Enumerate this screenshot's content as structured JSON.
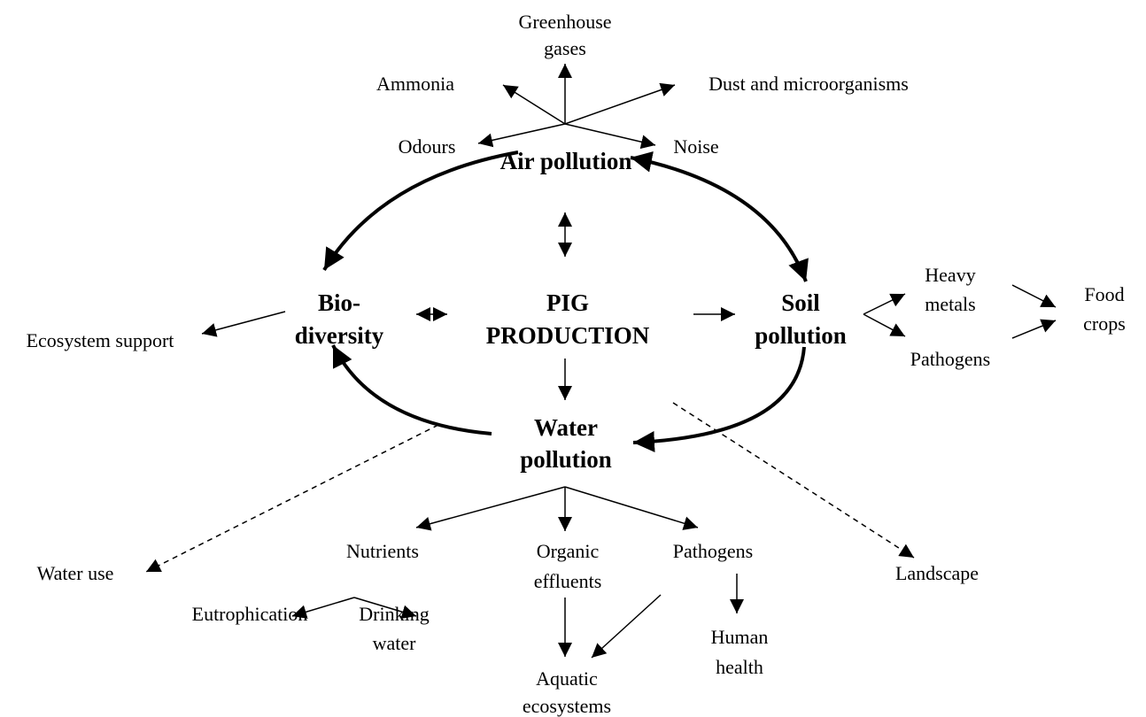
{
  "nodes": [
    {
      "lines": [
        "Greenhouse",
        "gases"
      ]
    },
    {
      "lines": [
        "Ammonia"
      ]
    },
    {
      "lines": [
        "Dust and microorganisms"
      ]
    },
    {
      "lines": [
        "Odours"
      ]
    },
    {
      "lines": [
        "Noise"
      ]
    },
    {
      "lines": [
        "Air pollution"
      ]
    },
    {
      "lines": [
        "Bio-",
        "diversity"
      ]
    },
    {
      "lines": [
        "PIG",
        "PRODUCTION"
      ]
    },
    {
      "lines": [
        "Soil",
        "pollution"
      ]
    },
    {
      "lines": [
        "Heavy",
        "metals"
      ]
    },
    {
      "lines": [
        "Pathogens"
      ]
    },
    {
      "lines": [
        "Food",
        "crops"
      ]
    },
    {
      "lines": [
        "Ecosystem support"
      ]
    },
    {
      "lines": [
        "Water",
        "pollution"
      ]
    },
    {
      "lines": [
        "Water use"
      ]
    },
    {
      "lines": [
        "Nutrients"
      ]
    },
    {
      "lines": [
        "Organic",
        "effluents"
      ]
    },
    {
      "lines": [
        "Pathogens"
      ]
    },
    {
      "lines": [
        "Landscape"
      ]
    },
    {
      "lines": [
        "Eutrophication"
      ]
    },
    {
      "lines": [
        "Drinking",
        "water"
      ]
    },
    {
      "lines": [
        "Human",
        "health"
      ]
    },
    {
      "lines": [
        "Aquatic",
        "ecosystems"
      ]
    }
  ]
}
